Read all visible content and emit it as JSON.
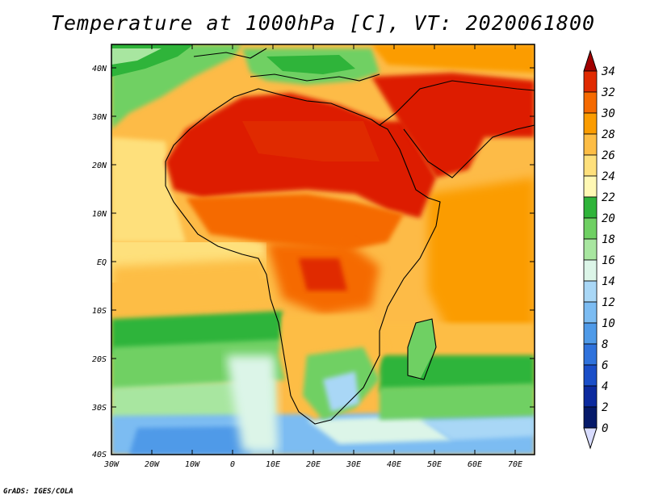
{
  "title": "Temperature at 1000hPa [C], VT: 2020061800",
  "credit": "GrADS: IGES/COLA",
  "lat_ticks": [
    "40N",
    "30N",
    "20N",
    "10N",
    "EQ",
    "10S",
    "20S",
    "30S",
    "40S"
  ],
  "lon_ticks": [
    "30W",
    "20W",
    "10W",
    "0",
    "10E",
    "20E",
    "30E",
    "40E",
    "50E",
    "60E",
    "70E"
  ],
  "colorbar": {
    "labels": [
      "34",
      "32",
      "30",
      "28",
      "26",
      "24",
      "22",
      "20",
      "18",
      "16",
      "14",
      "12",
      "10",
      "8",
      "6",
      "4",
      "2",
      "0"
    ],
    "colors": [
      "#a10000",
      "#e02a00",
      "#f56a00",
      "#fb9c00",
      "#fdbd45",
      "#fee07c",
      "#fff8b4",
      "#2fb43a",
      "#6fd063",
      "#a8e6a0",
      "#dcf5e8",
      "#a9d7f6",
      "#7cbcf2",
      "#4f9ae8",
      "#2f72dc",
      "#1a4ec8",
      "#0c2a9e",
      "#061a6a"
    ]
  },
  "colors": {
    "hot": "#dd1c00",
    "ocean_warm": "#fba332",
    "ocean_cool": "#5fc45a",
    "ocean_cold": "#7bb6ef",
    "coast": "#000000"
  }
}
